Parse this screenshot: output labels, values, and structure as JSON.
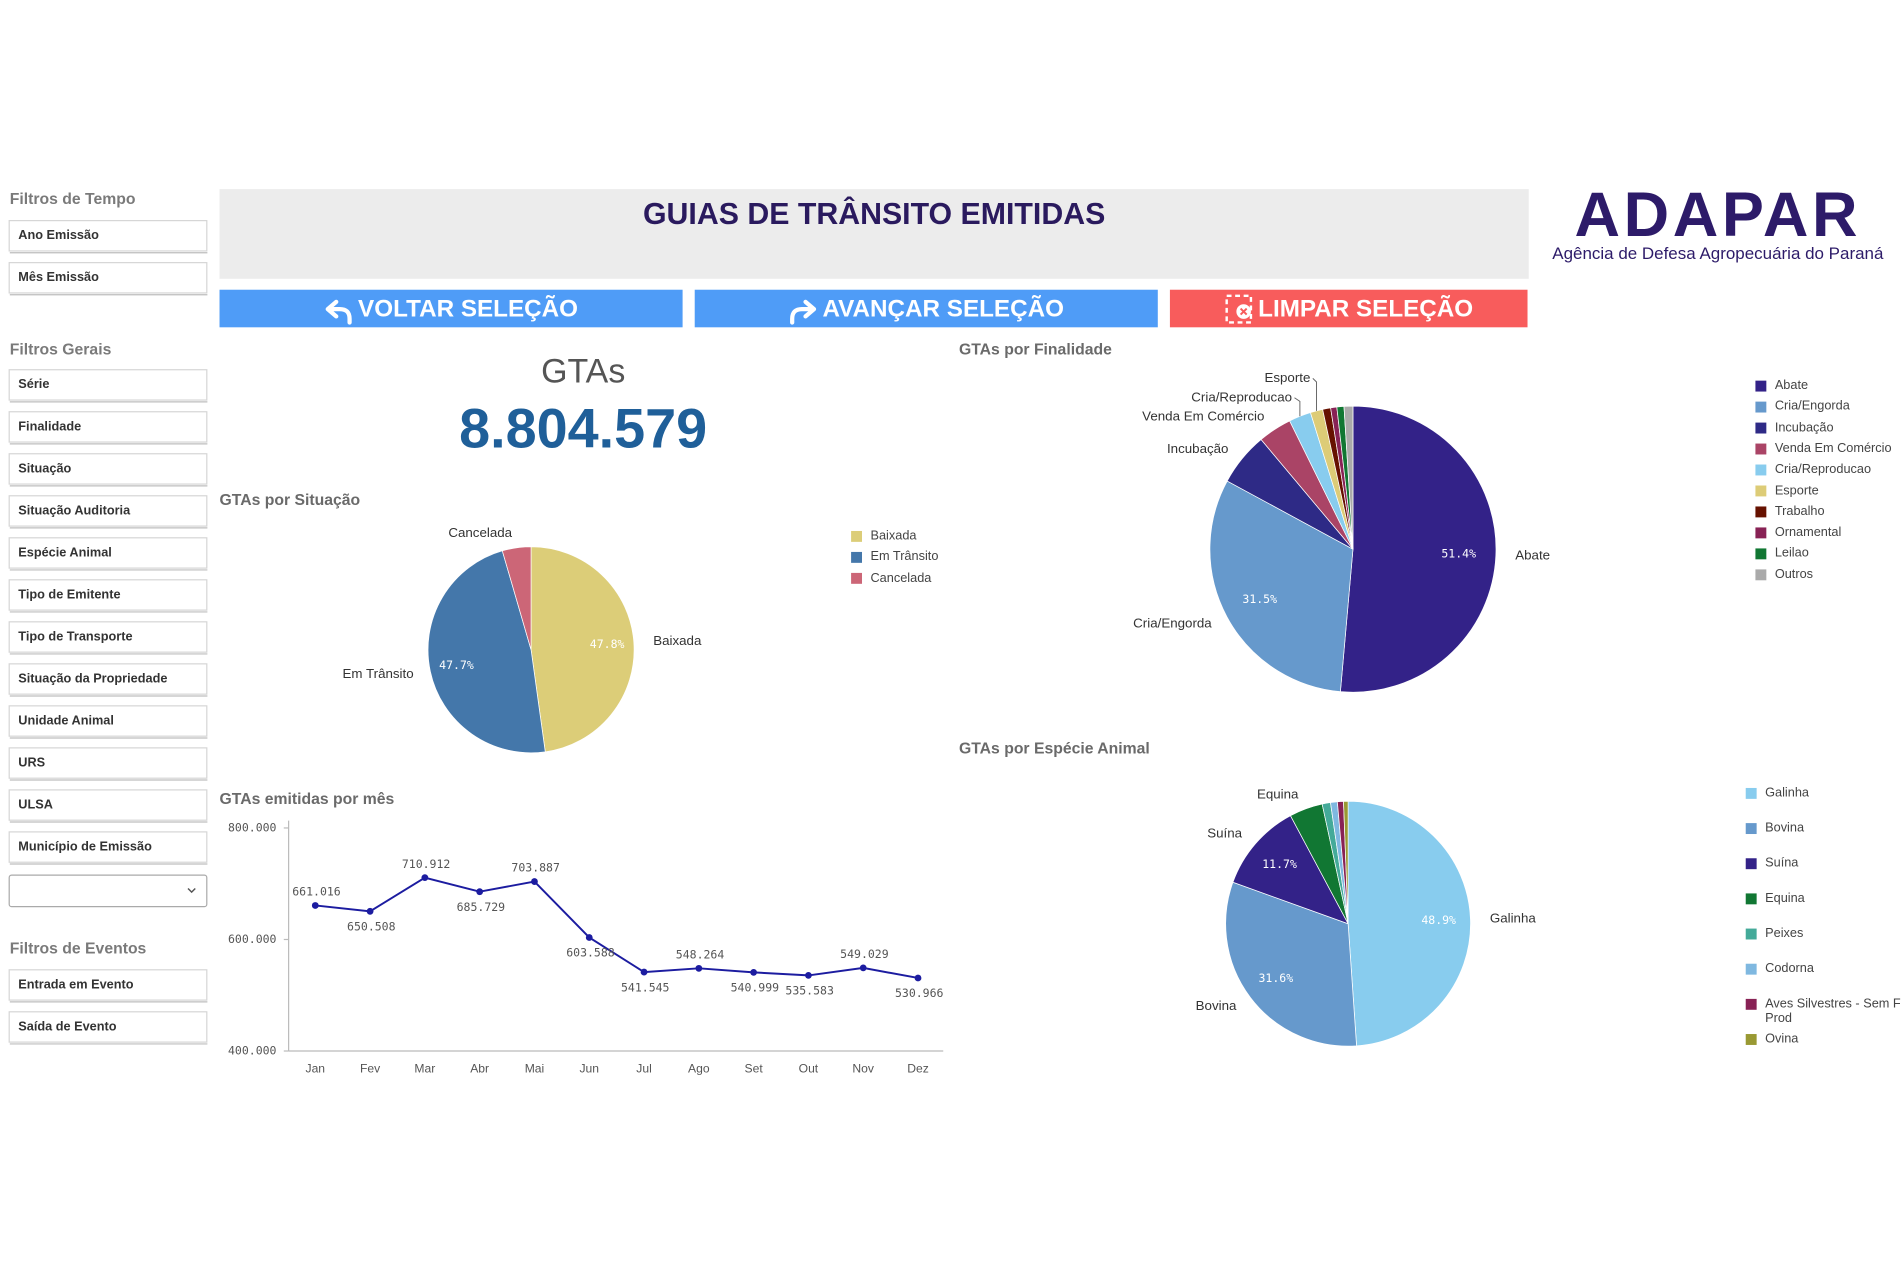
{
  "sidebar": {
    "groups": [
      {
        "title": "Filtros de Tempo",
        "items": [
          "Ano Emissão",
          "Mês Emissão"
        ]
      },
      {
        "title": "Filtros Gerais",
        "items": [
          "Série",
          "Finalidade",
          "Situação",
          "Situação Auditoria",
          "Espécie Animal",
          "Tipo de Emitente",
          "Tipo de Transporte",
          "Situação da Propriedade",
          "Unidade Animal",
          "URS",
          "ULSA",
          "Município de Emissão"
        ]
      },
      {
        "title": "Filtros de Eventos",
        "items": [
          "Entrada em Evento",
          "Saída de Evento"
        ]
      }
    ]
  },
  "header": {
    "title": "GUIAS DE TRÂNSITO EMITIDAS"
  },
  "logo": {
    "name": "ADAPAR",
    "subtitle": "Agência de Defesa Agropecuária do Paraná"
  },
  "buttons": [
    "VOLTAR SELEÇÃO",
    "AVANÇAR SELEÇÃO",
    "LIMPAR SELEÇÃO"
  ],
  "kpi": {
    "label": "GTAs",
    "value": "8.804.579"
  },
  "chart_data": [
    {
      "type": "pie",
      "title": "GTAs por Situação",
      "categories": [
        "Baixada",
        "Em Trânsito",
        "Cancelada"
      ],
      "values": [
        47.8,
        47.7,
        4.5
      ],
      "value_labels": [
        "47.8%",
        "47.7%",
        null
      ],
      "colors": [
        "#dccd78",
        "#4477aa",
        "#cc6677"
      ]
    },
    {
      "type": "line",
      "title": "GTAs emitidas por mês",
      "categories": [
        "Jan",
        "Fev",
        "Mar",
        "Abr",
        "Mai",
        "Jun",
        "Jul",
        "Ago",
        "Set",
        "Out",
        "Nov",
        "Dez"
      ],
      "values": [
        661016,
        650508,
        710912,
        685729,
        703887,
        603588,
        541545,
        548264,
        540999,
        535583,
        549029,
        530966
      ],
      "value_labels": [
        "661.016",
        "650.508",
        "710.912",
        "685.729",
        "703.887",
        "603.588",
        "541.545",
        "548.264",
        "540.999",
        "535.583",
        "549.029",
        "530.966"
      ],
      "color": "#1c1ca0",
      "ylim": [
        400000,
        800000
      ],
      "yticks": [
        {
          "value": 400000,
          "label": "400.000"
        },
        {
          "value": 600000,
          "label": "600.000"
        },
        {
          "value": 800000,
          "label": "800.000"
        }
      ],
      "grid": false
    },
    {
      "type": "pie",
      "title": "GTAs por Finalidade",
      "categories": [
        "Abate",
        "Cria/Engorda",
        "Incubação",
        "Venda Em Comércio",
        "Cria/Reproducao",
        "Esporte",
        "Trabalho",
        "Ornamental",
        "Leilao",
        "Outros"
      ],
      "values": [
        51.4,
        31.5,
        6.0,
        3.8,
        2.5,
        1.4,
        0.9,
        0.7,
        0.8,
        1.0
      ],
      "value_labels": [
        "51.4%",
        "31.5%",
        null,
        null,
        null,
        null,
        null,
        null,
        null,
        null
      ],
      "colors": [
        "#332288",
        "#6699cc",
        "#2e2a86",
        "#aa4466",
        "#88ccee",
        "#ddcc77",
        "#661100",
        "#882255",
        "#117733",
        "#aaaaaa"
      ]
    },
    {
      "type": "pie",
      "title": "GTAs por Espécie Animal",
      "categories": [
        "Galinha",
        "Bovina",
        "Suína",
        "Equina",
        "Peixes",
        "Codorna",
        "Aves Silvestres - Sem Fin Prod",
        "Ovina"
      ],
      "values": [
        48.9,
        31.6,
        11.7,
        4.4,
        1.1,
        0.9,
        0.8,
        0.6
      ],
      "value_labels": [
        "48.9%",
        "31.6%",
        "11.7%",
        null,
        null,
        null,
        null,
        null
      ],
      "colors": [
        "#88ccee",
        "#6699cc",
        "#332288",
        "#117733",
        "#44aa99",
        "#7fb8e0",
        "#882255",
        "#999933"
      ]
    }
  ]
}
